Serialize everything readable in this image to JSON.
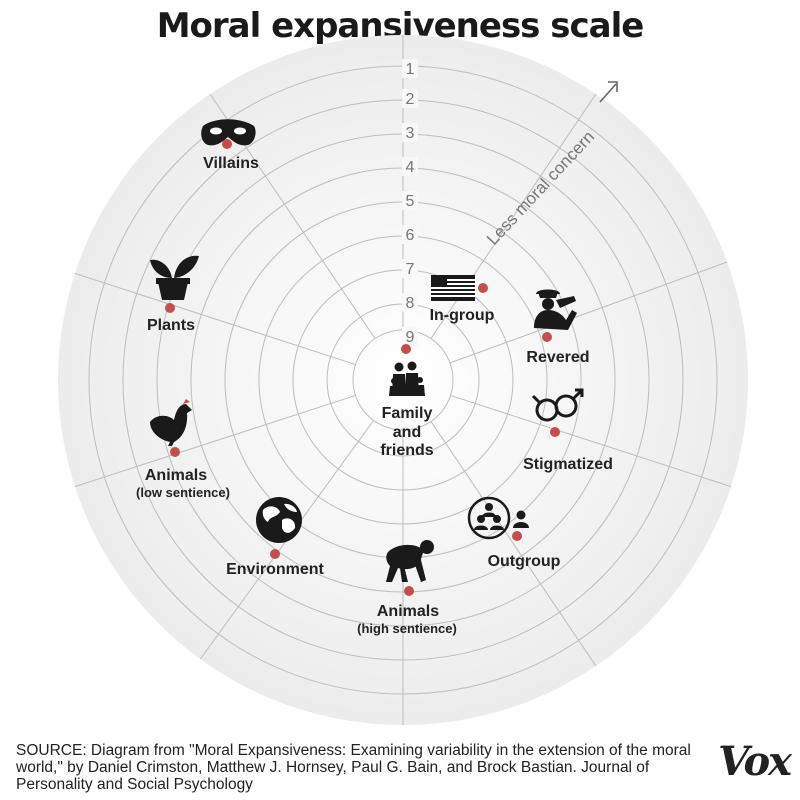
{
  "title": "Moral expansiveness scale",
  "ring_numbers": [
    "1",
    "2",
    "3",
    "4",
    "5",
    "6",
    "7",
    "8",
    "9"
  ],
  "axis_annotation": "Less moral concern",
  "categories": {
    "villains": {
      "label": "Villains",
      "icon": "mask-icon"
    },
    "plants": {
      "label": "Plants",
      "icon": "potted-plant-icon"
    },
    "animals_low": {
      "label": "Animals",
      "sublabel": "(low sentience)",
      "icon": "chicken-icon"
    },
    "environment": {
      "label": "Environment",
      "icon": "globe-icon"
    },
    "animals_high": {
      "label": "Animals",
      "sublabel": "(high sentience)",
      "icon": "chimpanzee-icon"
    },
    "outgroup": {
      "label": "Outgroup",
      "icon": "group-people-icon"
    },
    "stigmatized": {
      "label": "Stigmatized",
      "icon": "gender-symbols-icon"
    },
    "revered": {
      "label": "Revered",
      "icon": "saluting-soldier-icon"
    },
    "ingroup": {
      "label": "In-group",
      "icon": "us-flag-icon"
    },
    "family": {
      "label_lines": [
        "Family",
        "and",
        "friends"
      ],
      "icon": "family-icon"
    }
  },
  "source": "SOURCE: Diagram from \"Moral Expansiveness: Examining variability in the extension of the moral world,\" by Daniel Crimston, Matthew J. Hornsey, Paul G. Bain, and Brock Bastian. Journal of Personality and Social Psychology",
  "brand": "Vox",
  "colors": {
    "dot": "#c0504d",
    "grid": "#bdbdbd",
    "text": "#222222",
    "number": "#777777"
  }
}
